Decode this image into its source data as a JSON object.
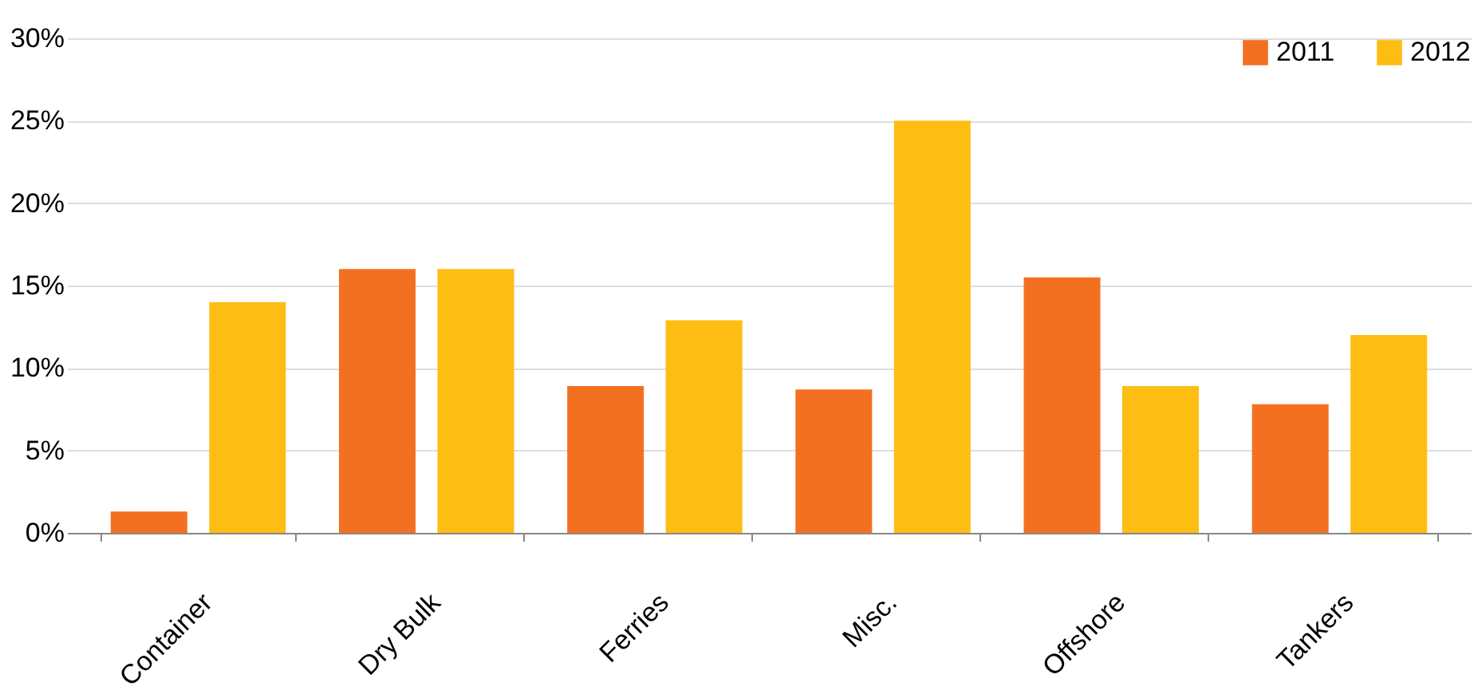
{
  "chart_data": {
    "type": "bar",
    "categories": [
      "Container",
      "Dry Bulk",
      "Ferries",
      "Misc.",
      "Offshore",
      "Tankers"
    ],
    "series": [
      {
        "name": "2011",
        "color": "#f37021",
        "values": [
          1.3,
          16.0,
          8.9,
          8.7,
          15.5,
          7.8
        ]
      },
      {
        "name": "2012",
        "color": "#fdbd12",
        "values": [
          14.0,
          16.0,
          12.9,
          25.0,
          8.9,
          12.0
        ]
      }
    ],
    "ylim": [
      0,
      30
    ],
    "yticks": [
      {
        "value": 0,
        "label": "0%"
      },
      {
        "value": 5,
        "label": "5%"
      },
      {
        "value": 10,
        "label": "10%"
      },
      {
        "value": 15,
        "label": "15%"
      },
      {
        "value": 20,
        "label": "20%"
      },
      {
        "value": 25,
        "label": "25%"
      },
      {
        "value": 30,
        "label": "30%"
      }
    ],
    "grid": "y",
    "legend": "top right"
  }
}
